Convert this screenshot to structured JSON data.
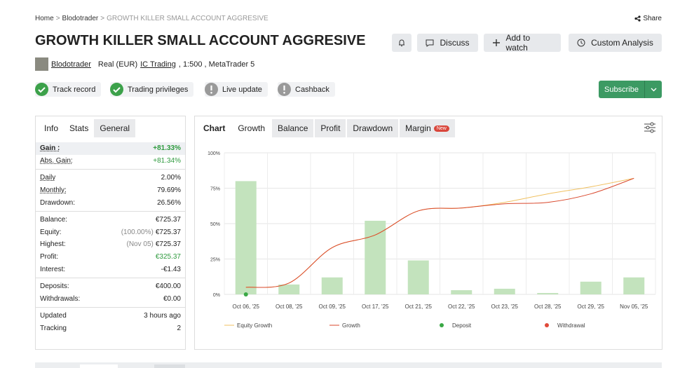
{
  "breadcrumb": {
    "items": [
      "Home",
      "Blodotrader",
      "GROWTH KILLER SMALL ACCOUNT AGGRESIVE"
    ],
    "separator": ">"
  },
  "share": "Share",
  "title": "GROWTH KILLER SMALL ACCOUNT AGGRESIVE",
  "buttons": [
    "Discuss",
    "Add to watch",
    "Custom Analysis"
  ],
  "account": {
    "user": "Blodotrader",
    "type": "Real (EUR)",
    "broker": "IC Trading",
    "details": ", 1:500 , MetaTrader 5"
  },
  "badges": [
    {
      "label": "Track record",
      "status": "ok"
    },
    {
      "label": "Trading privileges",
      "status": "ok"
    },
    {
      "label": "Live update",
      "status": "warn"
    },
    {
      "label": "Cashback",
      "status": "warn"
    }
  ],
  "subscribe": "Subscribe",
  "info_tabs": [
    "Info",
    "Stats",
    "General"
  ],
  "stats": [
    [
      {
        "label": "Gain :",
        "value": "+81.33%",
        "tone": "green",
        "bold": true,
        "underline": true
      },
      {
        "label": "Abs. Gain:",
        "value": "+81.34%",
        "tone": "green",
        "underline": true
      }
    ],
    [
      {
        "label": "Daily",
        "value": "2.00%",
        "underline": true
      },
      {
        "label": "Monthly:",
        "value": "79.69%",
        "underline": true
      },
      {
        "label": "Drawdown:",
        "value": "26.56%"
      }
    ],
    [
      {
        "label": "Balance:",
        "value": "€725.37"
      },
      {
        "label": "Equity:",
        "note": "(100.00%)",
        "value": "€725.37"
      },
      {
        "label": "Highest:",
        "note": "(Nov 05)",
        "value": "€725.37"
      },
      {
        "label": "Profit:",
        "value": "€325.37",
        "tone": "green"
      },
      {
        "label": "Interest:",
        "value": "-€1.43"
      }
    ],
    [
      {
        "label": "Deposits:",
        "value": "€400.00"
      },
      {
        "label": "Withdrawals:",
        "value": "€0.00"
      }
    ],
    [
      {
        "label": "Updated",
        "value": "3 hours ago"
      },
      {
        "label": "Tracking",
        "value": "2"
      }
    ]
  ],
  "chart_tabs": [
    "Chart",
    "Growth",
    "Balance",
    "Profit",
    "Drawdown",
    "Margin"
  ],
  "new_badge": "New",
  "chart_data": {
    "type": "combo",
    "categories": [
      "Oct 06, '25",
      "Oct 08, '25",
      "Oct 09, '25",
      "Oct 17, '25",
      "Oct 21, '25",
      "Oct 22, '25",
      "Oct 23, '25",
      "Oct 28, '25",
      "Oct 29, '25",
      "Nov 05, '25"
    ],
    "bars": {
      "color": "#c3e3bd",
      "values": [
        80,
        7,
        12,
        52,
        24,
        3,
        4,
        1,
        9,
        12
      ]
    },
    "series": [
      {
        "name": "Equity Growth",
        "color": "#f0c060",
        "kind": "line",
        "values": [
          5,
          8,
          33,
          42,
          59,
          61,
          65,
          71,
          76,
          82
        ]
      },
      {
        "name": "Growth",
        "color": "#d9472b",
        "kind": "line",
        "values": [
          5,
          8,
          33,
          42,
          59,
          61,
          64,
          65,
          71,
          82
        ]
      },
      {
        "name": "Deposit",
        "color": "#3aa845",
        "kind": "point",
        "values": [
          0,
          null,
          null,
          null,
          null,
          null,
          null,
          null,
          null,
          null
        ]
      },
      {
        "name": "Withdrawal",
        "color": "#e04a3a",
        "kind": "point",
        "values": [
          null,
          null,
          null,
          null,
          null,
          null,
          null,
          null,
          null,
          null
        ]
      }
    ],
    "ylim": [
      0,
      100
    ],
    "yticks": [
      {
        "value": 0,
        "label": "0%"
      },
      {
        "value": 25,
        "label": "25%"
      },
      {
        "value": 50,
        "label": "50%"
      },
      {
        "value": 75,
        "label": "75%"
      },
      {
        "value": 100,
        "label": "100%"
      }
    ],
    "grid": true
  }
}
